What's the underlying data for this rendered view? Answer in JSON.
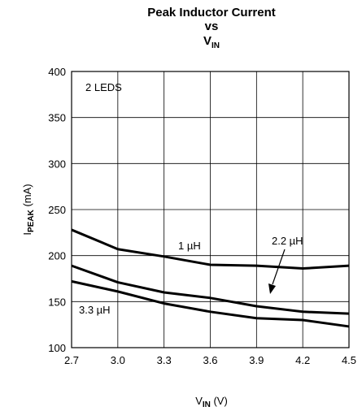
{
  "chart_data": {
    "type": "line",
    "title": {
      "line1": "Peak Inductor Current",
      "line2": "vs",
      "line3_main": "V",
      "line3_sub": "IN"
    },
    "xlabel": {
      "main": "V",
      "sub": "IN",
      "unit": " (V)"
    },
    "ylabel": {
      "main": "I",
      "sub": "PEAK",
      "unit": " (mA)"
    },
    "xlim": [
      2.7,
      4.5
    ],
    "ylim": [
      100,
      400
    ],
    "xticks": [
      2.7,
      3.0,
      3.3,
      3.6,
      3.9,
      4.2,
      4.5
    ],
    "xtick_labels": [
      "2.7",
      "3.0",
      "3.3",
      "3.6",
      "3.9",
      "4.2",
      "4.5"
    ],
    "yticks": [
      100,
      150,
      200,
      250,
      300,
      350,
      400
    ],
    "ytick_labels": [
      "100",
      "150",
      "200",
      "250",
      "300",
      "350",
      "400"
    ],
    "grid": true,
    "condition_label": "2 LEDS",
    "x": [
      2.7,
      3.0,
      3.3,
      3.6,
      3.9,
      4.2,
      4.5
    ],
    "series": [
      {
        "name": "1 µH",
        "values": [
          228,
          207,
          199,
          190,
          189,
          186,
          189
        ]
      },
      {
        "name": "2.2 µH",
        "values": [
          189,
          171,
          160,
          154,
          145,
          139,
          137
        ]
      },
      {
        "name": "3.3 µH",
        "values": [
          172,
          161,
          148,
          139,
          132,
          130,
          123
        ]
      }
    ],
    "annotations": [
      {
        "text": "1 µH",
        "series": 0
      },
      {
        "text": "2.2 µH",
        "series": 1
      },
      {
        "text": "3.3 µH",
        "series": 2
      }
    ]
  }
}
